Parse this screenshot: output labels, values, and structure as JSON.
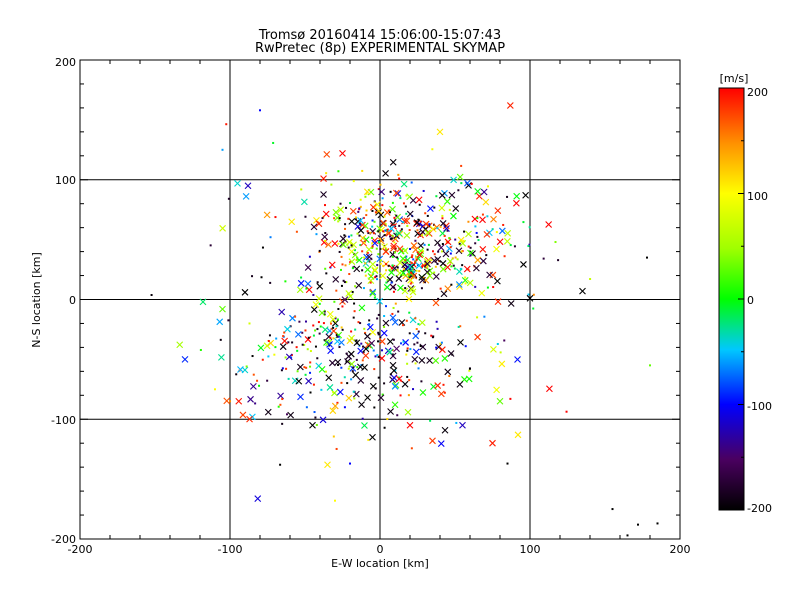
{
  "chart_data": {
    "type": "scatter",
    "title": "Tromsø 20160414 15:06:00-15:07:43",
    "subtitle": "RwPretec (8p) EXPERIMENTAL SKYMAP",
    "xlabel": "E-W location [km]",
    "ylabel": "N-S location [km]",
    "xlim": [
      -200,
      200
    ],
    "ylim": [
      -200,
      200
    ],
    "xticks": [
      "-200",
      "-100",
      "0",
      "100",
      "200"
    ],
    "yticks": [
      "-200",
      "-100",
      "0",
      "100",
      "200"
    ],
    "grid": true,
    "grid_lines_at": [
      -100,
      0,
      100
    ],
    "colorbar": {
      "label": "[m/s]",
      "range": [
        -200,
        200
      ],
      "ticks": [
        "200",
        "100",
        "0",
        "-100",
        "-200"
      ],
      "colormap": "rainbow: black(-200) → purple → blue(-100) → cyan → green(0) → yellow(100) → red(200)"
    },
    "marker_types": [
      "cross (x) for larger echoes",
      "dot for small echoes"
    ],
    "clusters": [
      {
        "center": [
          5,
          60
        ],
        "spread": [
          30,
          22
        ],
        "count": 260,
        "velocity_mean": 40,
        "velocity_sd": 110
      },
      {
        "center": [
          20,
          30
        ],
        "spread": [
          22,
          14
        ],
        "count": 200,
        "velocity_mean": 60,
        "velocity_sd": 70
      },
      {
        "center": [
          -20,
          -35
        ],
        "spread": [
          28,
          25
        ],
        "count": 200,
        "velocity_mean": -80,
        "velocity_sd": 120
      },
      {
        "center": [
          20,
          -45
        ],
        "spread": [
          35,
          30
        ],
        "count": 110,
        "velocity_mean": -60,
        "velocity_sd": 130
      },
      {
        "center": [
          40,
          60
        ],
        "spread": [
          35,
          20
        ],
        "count": 90,
        "velocity_mean": 20,
        "velocity_sd": 130
      },
      {
        "center": [
          -60,
          -60
        ],
        "spread": [
          25,
          25
        ],
        "count": 60,
        "velocity_mean": -20,
        "velocity_sd": 110
      },
      {
        "center": [
          0,
          0
        ],
        "spread": [
          70,
          70
        ],
        "count": 70,
        "velocity_mean": 0,
        "velocity_sd": 150
      }
    ],
    "points": [
      {
        "x": 40,
        "y": 140,
        "v": 110,
        "m": "x"
      },
      {
        "x": -80,
        "y": 158,
        "v": -100,
        "m": "."
      },
      {
        "x": -105,
        "y": 125,
        "v": -60,
        "m": "."
      },
      {
        "x": -25,
        "y": 122,
        "v": 200,
        "m": "x"
      },
      {
        "x": -95,
        "y": 97,
        "v": -40,
        "m": "x"
      },
      {
        "x": -88,
        "y": 95,
        "v": -120,
        "m": "x"
      },
      {
        "x": 135,
        "y": 7,
        "v": -200,
        "m": "x"
      },
      {
        "x": 100,
        "y": 1,
        "v": -200,
        "m": "x"
      },
      {
        "x": -90,
        "y": 6,
        "v": -200,
        "m": "x"
      },
      {
        "x": -130,
        "y": -50,
        "v": -90,
        "m": "x"
      },
      {
        "x": -118,
        "y": -2,
        "v": -20,
        "m": "x"
      },
      {
        "x": -105,
        "y": -8,
        "v": 30,
        "m": "x"
      },
      {
        "x": 117,
        "y": 48,
        "v": 40,
        "m": "."
      },
      {
        "x": 178,
        "y": 35,
        "v": -200,
        "m": "."
      },
      {
        "x": 180,
        "y": -55,
        "v": 30,
        "m": "."
      },
      {
        "x": 92,
        "y": -113,
        "v": 110,
        "m": "x"
      },
      {
        "x": 80,
        "y": -85,
        "v": 30,
        "m": "x"
      },
      {
        "x": 75,
        "y": -120,
        "v": 190,
        "m": "x"
      },
      {
        "x": 85,
        "y": -137,
        "v": -200,
        "m": "."
      },
      {
        "x": 155,
        "y": -175,
        "v": -200,
        "m": "."
      },
      {
        "x": 172,
        "y": -188,
        "v": -200,
        "m": "."
      },
      {
        "x": 185,
        "y": -187,
        "v": -200,
        "m": "."
      },
      {
        "x": 165,
        "y": -197,
        "v": -200,
        "m": "."
      },
      {
        "x": -35,
        "y": -138,
        "v": 110,
        "m": "x"
      },
      {
        "x": -20,
        "y": -137,
        "v": -100,
        "m": "."
      },
      {
        "x": -30,
        "y": -168,
        "v": 100,
        "m": "."
      },
      {
        "x": -45,
        "y": -105,
        "v": -200,
        "m": "x"
      },
      {
        "x": -5,
        "y": -115,
        "v": -200,
        "m": "x"
      },
      {
        "x": 20,
        "y": -105,
        "v": 200,
        "m": "x"
      },
      {
        "x": 35,
        "y": -118,
        "v": 180,
        "m": "x"
      },
      {
        "x": 55,
        "y": -105,
        "v": -120,
        "m": "x"
      },
      {
        "x": -110,
        "y": -75,
        "v": 100,
        "m": "."
      },
      {
        "x": -100,
        "y": -85,
        "v": 150,
        "m": "."
      }
    ]
  }
}
